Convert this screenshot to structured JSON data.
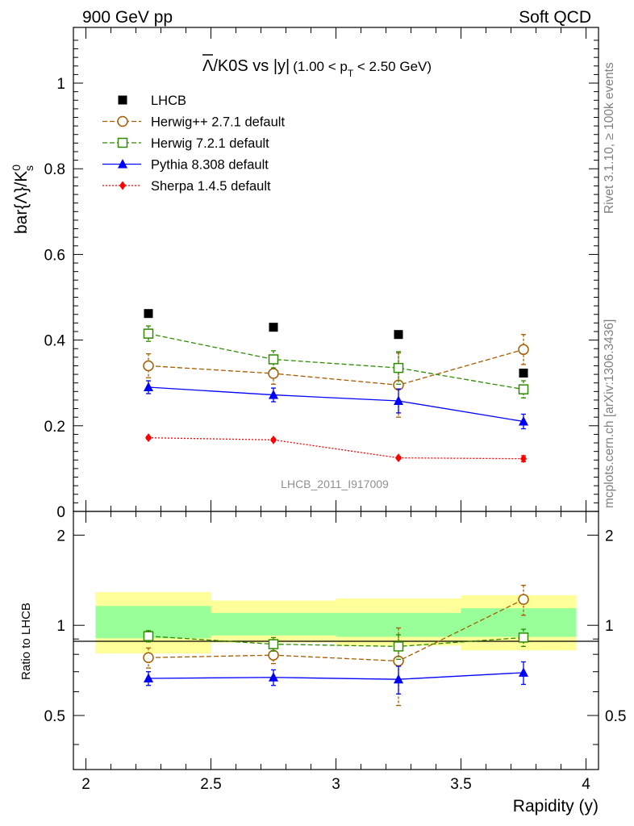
{
  "header": {
    "left": "900 GeV pp",
    "right": "Soft QCD"
  },
  "side": {
    "top": "Rivet 3.1.10, ≥ 100k events",
    "bottom": "mcplots.cern.ch [arXiv:1306.3436]"
  },
  "chart_data": [
    {
      "type": "scatter",
      "title_main": "Λ/K0S vs |y|",
      "title_sub": "(1.00 < p",
      "title_sub_subscript": "T",
      "title_sub_end": " < 2.50 GeV)",
      "ylabel": "bar{Λ}/K",
      "ylabel_sup": "0",
      "ylabel_sub": "s",
      "ylim": [
        0,
        1.13
      ],
      "y_ticks": [
        0,
        0.2,
        0.4,
        0.6,
        0.8,
        1
      ],
      "y_tick_labels": [
        "0",
        "0.2",
        "0.4",
        "0.6",
        "0.8",
        "1"
      ],
      "watermark": "LHCB_2011_I917009",
      "legend_position": "top-left",
      "x": [
        2.25,
        2.75,
        3.25,
        3.75
      ],
      "series": [
        {
          "name": "LHCB",
          "color": "#000000",
          "marker": "filled-square",
          "line": "none",
          "values": [
            0.462,
            0.43,
            0.413,
            0.323
          ],
          "errors": [
            0.005,
            0.005,
            0.005,
            0.005
          ]
        },
        {
          "name": "Herwig++ 2.7.1 default",
          "color": "#a65c00",
          "marker": "open-circle",
          "line": "dashed",
          "values": [
            0.34,
            0.322,
            0.295,
            0.378
          ],
          "errors": [
            0.028,
            0.025,
            0.075,
            0.035
          ]
        },
        {
          "name": "Herwig 7.2.1 default",
          "color": "#2e8b00",
          "marker": "open-square",
          "line": "dashed",
          "values": [
            0.415,
            0.355,
            0.335,
            0.285
          ],
          "errors": [
            0.018,
            0.02,
            0.038,
            0.02
          ]
        },
        {
          "name": "Pythia 8.308 default",
          "color": "#0000ff",
          "marker": "filled-triangle",
          "line": "solid",
          "values": [
            0.29,
            0.272,
            0.258,
            0.21
          ],
          "errors": [
            0.015,
            0.016,
            0.028,
            0.017
          ]
        },
        {
          "name": "Sherpa 1.4.5 default",
          "color": "#ff0000",
          "marker": "filled-diamond",
          "line": "dotted",
          "values": [
            0.172,
            0.167,
            0.125,
            0.123
          ],
          "errors": [
            0.003,
            0.003,
            0.003,
            0.007
          ]
        }
      ]
    },
    {
      "type": "scatter",
      "ylabel": "Ratio to LHCB",
      "xlabel": "Rapidity (y)",
      "ylim": [
        0.33,
        2.4
      ],
      "xlim": [
        1.95,
        4.05
      ],
      "y_scale": "log",
      "y_ticks": [
        0.5,
        1,
        2
      ],
      "y_tick_labels": [
        "0.5",
        "1",
        "2"
      ],
      "x_ticks": [
        2,
        2.5,
        3,
        3.5,
        4
      ],
      "x_tick_labels": [
        "2",
        "2.5",
        "3",
        "3.5",
        "4"
      ],
      "reference": 1,
      "bands": {
        "x_edges": [
          2.0,
          2.5,
          3.0,
          3.5,
          4.0
        ],
        "inner": [
          [
            0.905,
            1.16
          ],
          [
            0.925,
            1.1
          ],
          [
            0.915,
            1.1
          ],
          [
            0.915,
            1.14
          ]
        ],
        "outer": [
          [
            0.805,
            1.29
          ],
          [
            0.875,
            1.21
          ],
          [
            0.855,
            1.23
          ],
          [
            0.825,
            1.26
          ]
        ],
        "inner_color": "#99ff99",
        "outer_color": "#ffff99"
      },
      "x": [
        2.25,
        2.75,
        3.25,
        3.75
      ],
      "series": [
        {
          "name": "Herwig++ 2.7.1 default",
          "color": "#a65c00",
          "marker": "open-circle",
          "line": "dashed",
          "values": [
            0.78,
            0.795,
            0.76,
            1.22
          ],
          "errors": [
            0.06,
            0.05,
            0.22,
            0.14
          ]
        },
        {
          "name": "Herwig 7.2.1 default",
          "color": "#2e8b00",
          "marker": "open-square",
          "line": "dashed",
          "values": [
            0.92,
            0.865,
            0.85,
            0.91
          ],
          "errors": [
            0.04,
            0.045,
            0.08,
            0.06
          ]
        },
        {
          "name": "Pythia 8.308 default",
          "color": "#0000ff",
          "marker": "filled-triangle",
          "line": "solid",
          "values": [
            0.665,
            0.67,
            0.66,
            0.695
          ],
          "errors": [
            0.035,
            0.04,
            0.07,
            0.06
          ]
        }
      ]
    }
  ]
}
